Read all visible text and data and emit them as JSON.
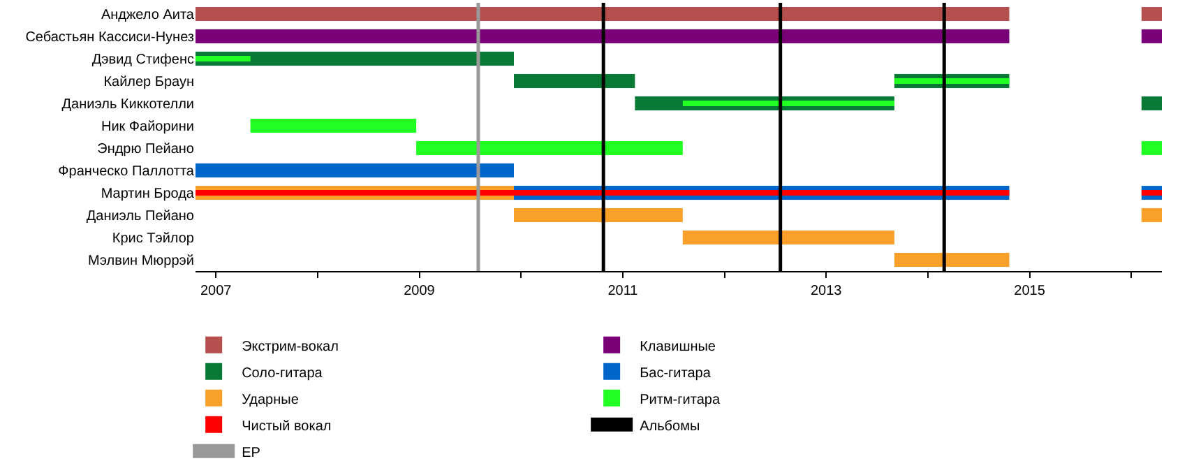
{
  "chart_data": {
    "type": "bar",
    "orientation": "horizontal",
    "categories": [
      "Анджело Аита",
      "Себастьян Кассиси-Нунез",
      "Дэвид Стифенс",
      "Кайлер Браун",
      "Даниэль Киккотелли",
      "Ник Файорини",
      "Эндрю Пейано",
      "Франческо Паллотта",
      "Мартин Брода",
      "Даниэль Пейано",
      "Крис Тэйлор",
      "Мэлвин Мюррэй"
    ],
    "series": [
      {
        "name": "Экстрим-вокал",
        "color": "#b5504f",
        "base": [
          2006.8,
          null,
          null,
          null,
          null,
          null,
          null,
          null,
          null,
          null,
          null,
          null
        ],
        "values": [
          8.0,
          null,
          null,
          null,
          null,
          null,
          null,
          null,
          null,
          null,
          null,
          null
        ]
      },
      {
        "color": "#b5504f",
        "base": [
          2016.1,
          null,
          null,
          null,
          null,
          null,
          null,
          null,
          null,
          null,
          null,
          null
        ],
        "values": [
          0.2,
          null,
          null,
          null,
          null,
          null,
          null,
          null,
          null,
          null,
          null,
          null
        ]
      },
      {
        "name": "Клавишные",
        "color": "#7a0077",
        "base": [
          null,
          2006.8,
          null,
          null,
          null,
          null,
          null,
          null,
          null,
          null,
          null,
          null
        ],
        "values": [
          null,
          8.0,
          null,
          null,
          null,
          null,
          null,
          null,
          null,
          null,
          null,
          null
        ]
      },
      {
        "color": "#7a0077",
        "base": [
          null,
          2016.1,
          null,
          null,
          null,
          null,
          null,
          null,
          null,
          null,
          null,
          null
        ],
        "values": [
          null,
          0.2,
          null,
          null,
          null,
          null,
          null,
          null,
          null,
          null,
          null,
          null
        ]
      },
      {
        "name": "Соло-гитара",
        "color": "#087a35",
        "base": [
          null,
          null,
          2006.8,
          2009.93,
          2011.12,
          null,
          null,
          null,
          null,
          null,
          null,
          null
        ],
        "values": [
          null,
          null,
          3.13,
          1.19,
          2.55,
          null,
          null,
          null,
          null,
          null,
          null,
          null
        ]
      },
      {
        "color": "#087a35",
        "base": [
          null,
          null,
          null,
          2013.67,
          2016.1,
          null,
          null,
          null,
          null,
          null,
          null,
          null
        ],
        "values": [
          null,
          null,
          null,
          1.13,
          0.2,
          null,
          null,
          null,
          null,
          null,
          null,
          null
        ]
      },
      {
        "name": "Бас-гитара",
        "color": "#0066cc",
        "base": [
          null,
          null,
          null,
          null,
          null,
          null,
          null,
          2006.8,
          2009.93,
          null,
          null,
          null
        ],
        "values": [
          null,
          null,
          null,
          null,
          null,
          null,
          null,
          3.13,
          4.87,
          null,
          null,
          null
        ]
      },
      {
        "color": "#0066cc",
        "base": [
          null,
          null,
          null,
          null,
          null,
          null,
          null,
          null,
          2016.1,
          null,
          null,
          null
        ],
        "values": [
          null,
          null,
          null,
          null,
          null,
          null,
          null,
          null,
          0.2,
          null,
          null,
          null
        ]
      },
      {
        "name": "Ударные",
        "color": "#f9a02a",
        "base": [
          null,
          null,
          null,
          null,
          null,
          null,
          null,
          null,
          2006.8,
          2009.93,
          2011.59,
          2013.67
        ],
        "values": [
          null,
          null,
          null,
          null,
          null,
          null,
          null,
          null,
          3.13,
          1.66,
          2.08,
          1.13
        ]
      },
      {
        "color": "#f9a02a",
        "base": [
          null,
          null,
          null,
          null,
          null,
          null,
          null,
          null,
          null,
          2016.1,
          null,
          null
        ],
        "values": [
          null,
          null,
          null,
          null,
          null,
          null,
          null,
          null,
          null,
          0.2,
          null,
          null
        ]
      },
      {
        "name": "Ритм-гитара",
        "color": "#22ff22",
        "base": [
          null,
          null,
          2006.8,
          null,
          2011.59,
          2007.34,
          2008.97,
          null,
          null,
          null,
          null,
          null
        ],
        "values": [
          null,
          null,
          0.54,
          null,
          2.08,
          1.63,
          2.62,
          null,
          null,
          null,
          null,
          null
        ]
      },
      {
        "color": "#22ff22",
        "base": [
          null,
          null,
          null,
          2013.67,
          null,
          null,
          2016.1,
          null,
          null,
          null,
          null,
          null
        ],
        "values": [
          null,
          null,
          null,
          1.13,
          null,
          null,
          0.2,
          null,
          null,
          null,
          null,
          null
        ]
      },
      {
        "name": "Чистый вокал",
        "color": "#ff0000",
        "base": [
          null,
          null,
          null,
          null,
          null,
          null,
          null,
          null,
          2006.8,
          null,
          null,
          null
        ],
        "values": [
          null,
          null,
          null,
          null,
          null,
          null,
          null,
          null,
          8.0,
          null,
          null,
          null
        ]
      },
      {
        "color": "#ff0000",
        "base": [
          null,
          null,
          null,
          null,
          null,
          null,
          null,
          null,
          2016.1,
          null,
          null,
          null
        ],
        "values": [
          null,
          null,
          null,
          null,
          null,
          null,
          null,
          null,
          0.2,
          null,
          null,
          null
        ]
      }
    ],
    "xlim": [
      2006.8,
      2016.3
    ],
    "xticks": [
      2007,
      {
        "value": 2008,
        "label": null
      },
      2009,
      {
        "value": 2010,
        "label": null
      },
      2011,
      {
        "value": 2012,
        "label": null
      },
      2013,
      {
        "value": 2014,
        "label": null
      },
      2015,
      {
        "value": 2016,
        "label": null
      }
    ],
    "ref_lines": [
      {
        "axis": "x",
        "value": 2010.81,
        "label": "Альбомы",
        "color": "#000000"
      },
      {
        "axis": "x",
        "value": 2012.55,
        "color": "#000000"
      },
      {
        "axis": "x",
        "value": 2014.16,
        "color": "#000000"
      },
      {
        "axis": "x",
        "value": 2009.58,
        "label": "EP",
        "color": "#999999"
      }
    ],
    "grid": false,
    "legend": "bottom"
  }
}
